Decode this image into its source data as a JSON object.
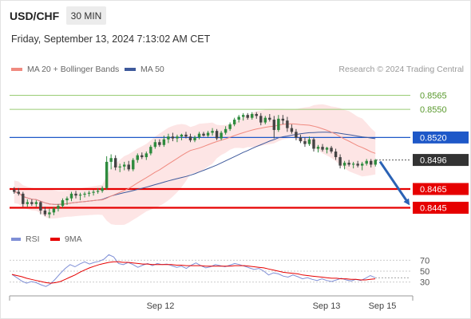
{
  "header": {
    "symbol": "USD/CHF",
    "timeframe": "30 MIN",
    "datetime": "Friday, September 13, 2024 7:13:02 AM CET"
  },
  "legend": {
    "ma20": "MA 20 + Bollinger Bands",
    "ma50": "MA 50",
    "credit": "Research © 2024 Trading Central"
  },
  "colors": {
    "ma20": "#f08a80",
    "ma50": "#3f5a9c",
    "candle_up": "#2e8b3e",
    "candle_down": "#444444",
    "bollinger_fill": "#fde2e2",
    "resistance_green": "#9acc74",
    "pivot_blue": "#1e58c8",
    "support_red": "#e60000",
    "last_price": "#333333",
    "arrow": "#2a62b5",
    "rsi": "#7f8fd6",
    "rsi_ma": "#e60000"
  },
  "chart_data": [
    {
      "type": "candlestick",
      "title": "USD/CHF",
      "ylim": [
        0.8425,
        0.8585
      ],
      "x_ticks": [
        "Sep 12",
        "Sep 13",
        "Sep 15"
      ],
      "levels": [
        {
          "value": 0.8565,
          "label": "0.8565",
          "kind": "resistance"
        },
        {
          "value": 0.855,
          "label": "0.8550",
          "kind": "resistance"
        },
        {
          "value": 0.852,
          "label": "0.8520",
          "kind": "pivot"
        },
        {
          "value": 0.8496,
          "label": "0.8496",
          "kind": "last"
        },
        {
          "value": 0.8465,
          "label": "0.8465",
          "kind": "support"
        },
        {
          "value": 0.8445,
          "label": "0.8445",
          "kind": "support"
        }
      ],
      "candles": [
        [
          0.8464,
          0.8467,
          0.846,
          0.8462
        ],
        [
          0.8462,
          0.8466,
          0.8458,
          0.846
        ],
        [
          0.846,
          0.8462,
          0.8446,
          0.8449
        ],
        [
          0.8449,
          0.8454,
          0.8446,
          0.8451
        ],
        [
          0.8451,
          0.8454,
          0.8447,
          0.8449
        ],
        [
          0.8449,
          0.8453,
          0.8446,
          0.8451
        ],
        [
          0.8451,
          0.8452,
          0.8438,
          0.8442
        ],
        [
          0.8442,
          0.8446,
          0.8436,
          0.8438
        ],
        [
          0.8438,
          0.8444,
          0.8434,
          0.844
        ],
        [
          0.844,
          0.8446,
          0.8437,
          0.8444
        ],
        [
          0.8444,
          0.8449,
          0.8441,
          0.8447
        ],
        [
          0.8447,
          0.8455,
          0.8445,
          0.8453
        ],
        [
          0.8453,
          0.8457,
          0.8448,
          0.8455
        ],
        [
          0.8455,
          0.8462,
          0.8452,
          0.846
        ],
        [
          0.846,
          0.8463,
          0.8455,
          0.8458
        ],
        [
          0.8458,
          0.8461,
          0.8453,
          0.8459
        ],
        [
          0.8459,
          0.8462,
          0.8456,
          0.846
        ],
        [
          0.846,
          0.8463,
          0.8457,
          0.8461
        ],
        [
          0.8461,
          0.8464,
          0.8458,
          0.8462
        ],
        [
          0.8462,
          0.8466,
          0.846,
          0.8463
        ],
        [
          0.8463,
          0.8468,
          0.8461,
          0.8466
        ],
        [
          0.8466,
          0.85,
          0.8464,
          0.8494
        ],
        [
          0.8494,
          0.8502,
          0.8486,
          0.8498
        ],
        [
          0.8498,
          0.8501,
          0.8485,
          0.8488
        ],
        [
          0.8488,
          0.8492,
          0.8483,
          0.8489
        ],
        [
          0.8489,
          0.8494,
          0.8485,
          0.8491
        ],
        [
          0.8491,
          0.8495,
          0.8484,
          0.8486
        ],
        [
          0.8486,
          0.8498,
          0.8484,
          0.8496
        ],
        [
          0.8496,
          0.8503,
          0.8493,
          0.8501
        ],
        [
          0.8501,
          0.8504,
          0.8497,
          0.8499
        ],
        [
          0.8499,
          0.8505,
          0.8496,
          0.8503
        ],
        [
          0.8503,
          0.8512,
          0.8501,
          0.851
        ],
        [
          0.851,
          0.8518,
          0.8508,
          0.8515
        ],
        [
          0.8515,
          0.8518,
          0.851,
          0.8512
        ],
        [
          0.8512,
          0.8522,
          0.851,
          0.8518
        ],
        [
          0.8518,
          0.8524,
          0.8514,
          0.8521
        ],
        [
          0.8521,
          0.8525,
          0.8516,
          0.8519
        ],
        [
          0.8519,
          0.8523,
          0.8515,
          0.8521
        ],
        [
          0.8521,
          0.8524,
          0.8517,
          0.8523
        ],
        [
          0.8523,
          0.8526,
          0.8519,
          0.8521
        ],
        [
          0.8521,
          0.8524,
          0.8515,
          0.8517
        ],
        [
          0.8517,
          0.8522,
          0.8515,
          0.852
        ],
        [
          0.852,
          0.8526,
          0.8518,
          0.8524
        ],
        [
          0.8524,
          0.8526,
          0.8521,
          0.8522
        ],
        [
          0.8522,
          0.8527,
          0.852,
          0.8525
        ],
        [
          0.8525,
          0.853,
          0.8522,
          0.8527
        ],
        [
          0.8527,
          0.8529,
          0.8517,
          0.8519
        ],
        [
          0.8519,
          0.8527,
          0.8517,
          0.8525
        ],
        [
          0.8525,
          0.8532,
          0.8523,
          0.8529
        ],
        [
          0.8529,
          0.8536,
          0.8527,
          0.8534
        ],
        [
          0.8534,
          0.8541,
          0.8532,
          0.8539
        ],
        [
          0.8539,
          0.8544,
          0.8536,
          0.8542
        ],
        [
          0.8542,
          0.8546,
          0.8538,
          0.8544
        ],
        [
          0.8544,
          0.8546,
          0.8539,
          0.8541
        ],
        [
          0.8541,
          0.8547,
          0.8539,
          0.8545
        ],
        [
          0.8545,
          0.8547,
          0.854,
          0.8543
        ],
        [
          0.8543,
          0.8546,
          0.8533,
          0.8536
        ],
        [
          0.8536,
          0.8543,
          0.8534,
          0.8541
        ],
        [
          0.8541,
          0.8545,
          0.8537,
          0.8539
        ],
        [
          0.8539,
          0.8543,
          0.8519,
          0.8528
        ],
        [
          0.8528,
          0.8544,
          0.8526,
          0.854
        ],
        [
          0.854,
          0.8544,
          0.8534,
          0.8538
        ],
        [
          0.8538,
          0.8542,
          0.8526,
          0.853
        ],
        [
          0.853,
          0.8534,
          0.8524,
          0.8526
        ],
        [
          0.8526,
          0.8529,
          0.8517,
          0.852
        ],
        [
          0.852,
          0.8523,
          0.8514,
          0.8516
        ],
        [
          0.8516,
          0.852,
          0.851,
          0.8513
        ],
        [
          0.8513,
          0.8521,
          0.8511,
          0.8518
        ],
        [
          0.8518,
          0.852,
          0.8505,
          0.8508
        ],
        [
          0.8508,
          0.8512,
          0.8504,
          0.851
        ],
        [
          0.851,
          0.8513,
          0.8505,
          0.8507
        ],
        [
          0.8507,
          0.851,
          0.8503,
          0.8509
        ],
        [
          0.8509,
          0.8511,
          0.8503,
          0.8505
        ],
        [
          0.8505,
          0.8508,
          0.8496,
          0.8499
        ],
        [
          0.8499,
          0.8502,
          0.8487,
          0.849
        ],
        [
          0.849,
          0.8495,
          0.8486,
          0.8493
        ],
        [
          0.8493,
          0.8496,
          0.8489,
          0.8491
        ],
        [
          0.8491,
          0.8494,
          0.8487,
          0.8492
        ],
        [
          0.8492,
          0.8495,
          0.8488,
          0.849
        ],
        [
          0.849,
          0.8494,
          0.8485,
          0.8492
        ],
        [
          0.8492,
          0.8497,
          0.849,
          0.8495
        ],
        [
          0.8495,
          0.8497,
          0.8488,
          0.8491
        ],
        [
          0.8491,
          0.8497,
          0.8489,
          0.8496
        ]
      ]
    },
    {
      "type": "line",
      "title": "RSI",
      "ylim": [
        15,
        85
      ],
      "y_ticks": [
        70,
        50,
        30
      ],
      "series": [
        {
          "name": "RSI",
          "values": [
            44,
            38,
            32,
            28,
            31,
            29,
            25,
            22,
            27,
            36,
            46,
            55,
            62,
            58,
            63,
            67,
            63,
            66,
            68,
            72,
            80,
            76,
            64,
            62,
            66,
            62,
            57,
            61,
            64,
            60,
            64,
            62,
            63,
            60,
            57,
            59,
            55,
            61,
            65,
            60,
            56,
            58,
            62,
            60,
            58,
            61,
            64,
            62,
            59,
            56,
            53,
            55,
            50,
            43,
            47,
            45,
            41,
            39,
            43,
            40,
            36,
            38,
            35,
            33,
            36,
            33,
            31,
            34,
            37,
            34,
            32,
            35,
            33,
            37,
            42,
            38
          ]
        },
        {
          "name": "9MA",
          "values": [
            44,
            42,
            40,
            37,
            35,
            33,
            31,
            29,
            28,
            29,
            31,
            35,
            39,
            43,
            48,
            52,
            56,
            59,
            62,
            64,
            66,
            67,
            67,
            66,
            66,
            65,
            64,
            63,
            63,
            62,
            62,
            62,
            62,
            62,
            61,
            61,
            60,
            60,
            60,
            60,
            59,
            59,
            59,
            59,
            59,
            59,
            60,
            60,
            60,
            59,
            58,
            57,
            56,
            54,
            52,
            50,
            48,
            47,
            46,
            45,
            43,
            42,
            41,
            40,
            39,
            38,
            37,
            37,
            36,
            36,
            35,
            35,
            34,
            34,
            35,
            36
          ]
        }
      ]
    }
  ]
}
